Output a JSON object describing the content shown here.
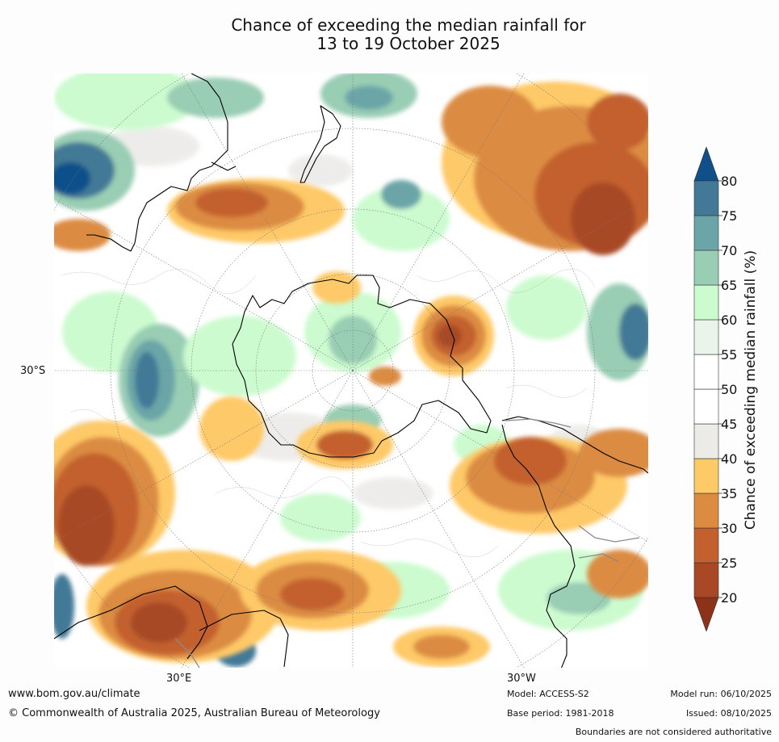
{
  "title": {
    "line1": "Chance of exceeding the median rainfall for",
    "line2": "13 to 19 October 2025"
  },
  "axis_labels": {
    "lat_30s": "30°S",
    "lon_30e": "30°E",
    "lon_30w": "30°W"
  },
  "legend": {
    "title": "Chance of exceeding median rainfall (%)",
    "ticks": [
      "20",
      "25",
      "30",
      "35",
      "40",
      "45",
      "50",
      "55",
      "60",
      "65",
      "70",
      "75",
      "80"
    ],
    "bins": [
      {
        "range": "<20",
        "color": "#8b3219"
      },
      {
        "range": "20-25",
        "color": "#a84826"
      },
      {
        "range": "25-30",
        "color": "#c3602e"
      },
      {
        "range": "30-35",
        "color": "#dc8c42"
      },
      {
        "range": "35-40",
        "color": "#fec967"
      },
      {
        "range": "40-45",
        "color": "#ecebe8"
      },
      {
        "range": "45-50",
        "color": "#ffffff"
      },
      {
        "range": "50-55",
        "color": "#ffffff"
      },
      {
        "range": "55-60",
        "color": "#e9f5ea"
      },
      {
        "range": "60-65",
        "color": "#ccfbcf"
      },
      {
        "range": "65-70",
        "color": "#99cdb4"
      },
      {
        "range": "70-75",
        "color": "#6ca5a8"
      },
      {
        "range": "75-80",
        "color": "#427996"
      },
      {
        "range": ">80",
        "color": "#0f4f8a"
      }
    ]
  },
  "footer": {
    "website": "www.bom.gov.au/climate",
    "copyright": "© Commonwealth of Australia 2025, Australian Bureau of Meteorology",
    "model": "Model: ACCESS-S2",
    "base_period": "Base period: 1981-2018",
    "model_run": "Model run: 06/10/2025",
    "issued": "Issued: 08/10/2025",
    "disclaimer": "Boundaries are not considered authoritative"
  }
}
